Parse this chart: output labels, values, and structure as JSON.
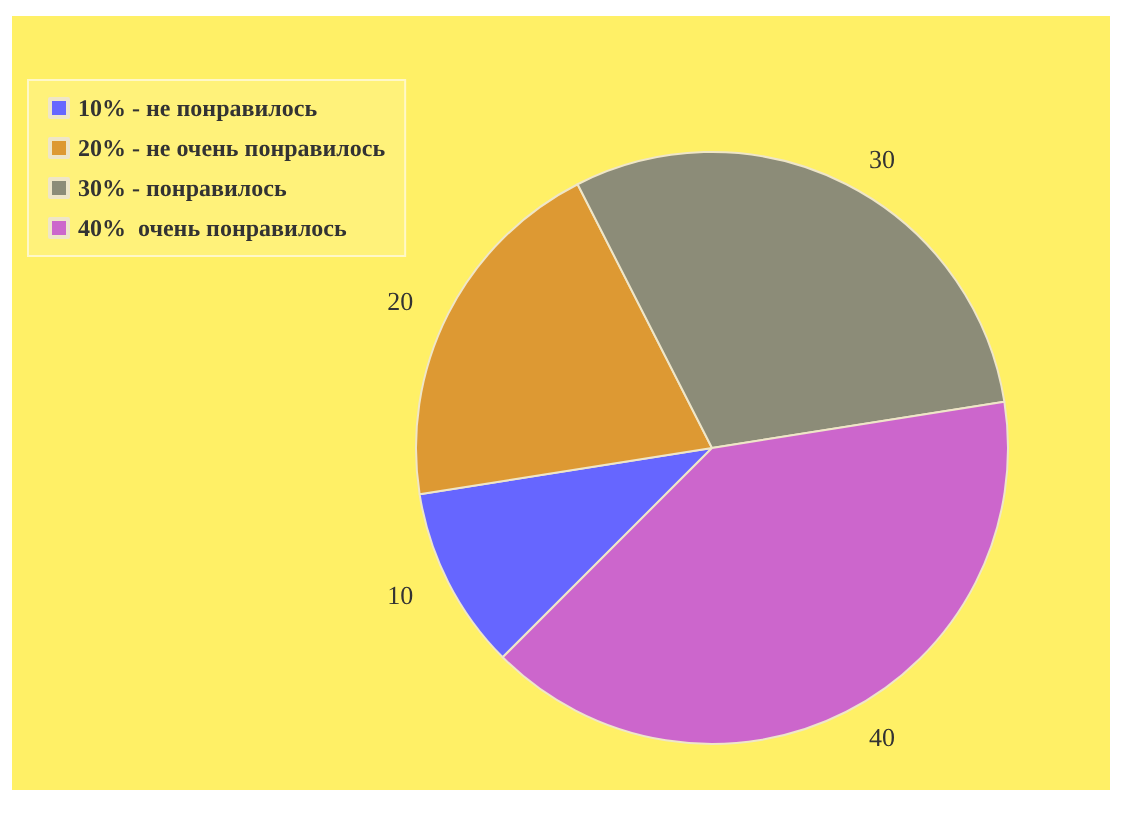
{
  "chart_data": {
    "type": "pie",
    "categories": [
      "10% - не понравилось",
      "20% - не очень понравилось",
      "30% - понравилось",
      "40%  очень понравилось"
    ],
    "values": [
      10,
      20,
      30,
      40
    ],
    "colors": [
      "#6666ff",
      "#dd9933",
      "#8c8c78",
      "#cc66cc"
    ],
    "data_labels": true,
    "legend": "top left"
  }
}
